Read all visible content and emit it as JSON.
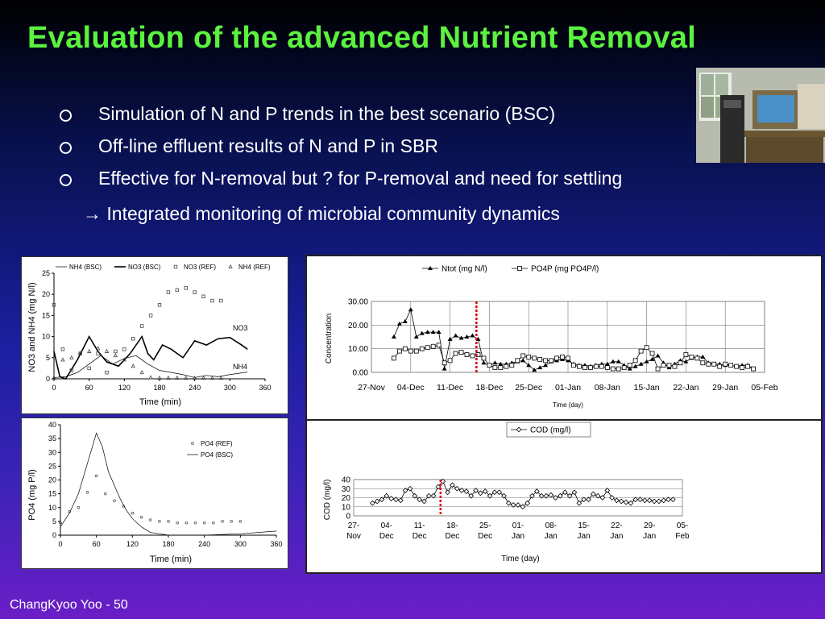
{
  "slide": {
    "title": "Evaluation of the advanced Nutrient Removal",
    "bullets": [
      "Simulation of N and P trends in the best scenario (BSC)",
      "Off-line effluent results of N and P in SBR",
      "Effective for N-removal but ? for P-removal and need for settling"
    ],
    "sub_arrow": "→",
    "sub_text": "Integrated monitoring of microbial community dynamics",
    "footer": "ChangKyoo Yoo - 50",
    "colors": {
      "title": "#5bf23f",
      "text": "#ffffff",
      "marker_line": "#dd0000"
    },
    "photo_icon": "lab-equipment-photo"
  },
  "chart_data": [
    {
      "id": "n_sim",
      "type": "line",
      "xlabel": "Time (min)",
      "ylabel": "NO3 and NH4 (mg N/l)",
      "xticks": [
        0,
        60,
        120,
        180,
        240,
        300,
        360
      ],
      "yticks": [
        0,
        5,
        10,
        15,
        20,
        25
      ],
      "xlim": [
        0,
        360
      ],
      "ylim": [
        0,
        25
      ],
      "legend": [
        "NH4 (BSC)",
        "NO3 (BSC)",
        "NO3 (REF)",
        "NH4 (REF)"
      ],
      "annotations": [
        "NO3",
        "NH4"
      ],
      "series": [
        {
          "name": "NH4 (BSC)",
          "style": "thin-line",
          "x": [
            0,
            20,
            40,
            60,
            80,
            100,
            120,
            140,
            160,
            180,
            200,
            220,
            240,
            260,
            280,
            300,
            330
          ],
          "y": [
            0.3,
            0.5,
            1.5,
            3.5,
            5.5,
            3.5,
            4.8,
            5.5,
            3.5,
            2.0,
            1.5,
            1.0,
            0.3,
            0.8,
            0.5,
            1.0,
            1.6
          ]
        },
        {
          "name": "NO3 (BSC)",
          "style": "thick-line",
          "x": [
            0,
            10,
            20,
            40,
            60,
            75,
            90,
            110,
            130,
            150,
            160,
            170,
            185,
            200,
            220,
            240,
            260,
            280,
            300,
            320,
            330
          ],
          "y": [
            6.5,
            0.5,
            0,
            4.5,
            10,
            6.5,
            4,
            3,
            6,
            10,
            6,
            4.5,
            8,
            7,
            5,
            9,
            8,
            9.5,
            9.8,
            8,
            7
          ]
        },
        {
          "name": "NO3 (REF)",
          "style": "square-markers",
          "x": [
            0,
            15,
            30,
            45,
            60,
            75,
            90,
            105,
            120,
            135,
            150,
            165,
            180,
            195,
            210,
            225,
            240,
            255,
            270,
            285
          ],
          "y": [
            17.5,
            7,
            2,
            6,
            2.5,
            6,
            1.5,
            6.5,
            7,
            9.5,
            12.5,
            15,
            17.5,
            20.5,
            21,
            21.5,
            20.5,
            19.5,
            18.5,
            18.5
          ]
        },
        {
          "name": "NH4 (REF)",
          "style": "triangle-markers",
          "x": [
            0,
            15,
            30,
            45,
            60,
            75,
            90,
            105,
            120,
            135,
            150,
            165,
            180,
            195,
            210,
            225,
            240,
            255,
            270,
            285
          ],
          "y": [
            0.2,
            4.5,
            5,
            6,
            6.5,
            7.2,
            6.5,
            5.5,
            4.5,
            3,
            1.5,
            0.3,
            0.2,
            0.2,
            0.2,
            0.2,
            0.2,
            0.2,
            0.2,
            0.2
          ]
        }
      ]
    },
    {
      "id": "p_sim",
      "type": "line",
      "xlabel": "Time (min)",
      "ylabel": "PO4 (mg P/l)",
      "xticks": [
        0,
        60,
        120,
        180,
        240,
        300,
        360
      ],
      "yticks": [
        0,
        5,
        10,
        15,
        20,
        25,
        30,
        35,
        40
      ],
      "xlim": [
        0,
        360
      ],
      "ylim": [
        0,
        40
      ],
      "legend": [
        "PO4 (REF)",
        "PO4 (BSC)"
      ],
      "series": [
        {
          "name": "PO4 (REF)",
          "style": "diamond-markers",
          "x": [
            0,
            15,
            30,
            45,
            60,
            75,
            90,
            105,
            120,
            135,
            150,
            165,
            180,
            195,
            210,
            225,
            240,
            255,
            270,
            285,
            300
          ],
          "y": [
            4.5,
            8.5,
            10,
            15.5,
            21.5,
            15,
            12.5,
            10.5,
            8,
            6.5,
            5.5,
            5,
            5,
            4.5,
            4.5,
            4.5,
            4.5,
            4.5,
            5,
            5,
            5
          ]
        },
        {
          "name": "PO4 (BSC)",
          "style": "thin-line",
          "x": [
            0,
            15,
            30,
            45,
            60,
            70,
            80,
            90,
            100,
            110,
            120,
            135,
            150,
            165,
            180,
            200,
            240,
            300,
            360
          ],
          "y": [
            3,
            8,
            15,
            26,
            37,
            32,
            23,
            18,
            13,
            9,
            6,
            3,
            1,
            0.5,
            0,
            0,
            0,
            0.5,
            1.5
          ]
        }
      ]
    },
    {
      "id": "ntot_po4p",
      "type": "line",
      "ylabel": "Concentration",
      "xlabel": "Time (day)",
      "xtick_labels": [
        "27-Nov",
        "04-Dec",
        "11-Dec",
        "18-Dec",
        "25-Dec",
        "01-Jan",
        "08-Jan",
        "15-Jan",
        "22-Jan",
        "29-Jan",
        "05-Feb"
      ],
      "ytick_labels": [
        "0.00",
        "10.00",
        "20.00",
        "30.00"
      ],
      "yticks": [
        0,
        10,
        20,
        30
      ],
      "ylim": [
        0,
        30
      ],
      "xlim": [
        0,
        70
      ],
      "legend": [
        "Ntot (mg N/l)",
        "PO4P (mg PO4P/l)"
      ],
      "marker_day": 18.7,
      "series": [
        {
          "name": "Ntot (mg N/l)",
          "style": "filled-triangle",
          "x": [
            4,
            5,
            6,
            7,
            8,
            9,
            10,
            11,
            12,
            13,
            14,
            15,
            16,
            17,
            18,
            19,
            20,
            21,
            22,
            23,
            24,
            25,
            26,
            27,
            28,
            29,
            30,
            31,
            32,
            33,
            34,
            35,
            36,
            37,
            38,
            39,
            40,
            41,
            42,
            43,
            44,
            45,
            46,
            47,
            48,
            49,
            50,
            51,
            52,
            53,
            54,
            55,
            56,
            57,
            58,
            59,
            60,
            61,
            62,
            63,
            64,
            65,
            66,
            67,
            68
          ],
          "y": [
            15,
            20.5,
            21.5,
            26.5,
            15,
            16.5,
            17,
            17,
            17,
            1.5,
            14,
            15.5,
            14.5,
            15,
            15.5,
            14,
            4,
            3,
            4,
            3.5,
            3.5,
            4,
            4.5,
            5,
            3,
            1,
            2,
            3,
            4.5,
            5,
            5.5,
            5,
            3.5,
            3,
            3,
            2.5,
            3,
            3.5,
            3.5,
            4.5,
            4.5,
            3,
            1.5,
            2.5,
            3.5,
            4.5,
            5.5,
            7,
            4,
            2,
            3.5,
            5,
            4.5,
            6,
            6.5,
            6.5,
            4,
            3.5,
            3.5,
            3,
            3,
            2.5,
            3,
            3,
            1.5
          ]
        },
        {
          "name": "PO4P (mg PO4P/l)",
          "style": "open-square",
          "x": [
            4,
            5,
            6,
            7,
            8,
            9,
            10,
            11,
            12,
            13,
            14,
            15,
            16,
            17,
            18,
            19,
            20,
            21,
            22,
            23,
            24,
            25,
            26,
            27,
            28,
            29,
            30,
            31,
            32,
            33,
            34,
            35,
            36,
            37,
            38,
            39,
            40,
            41,
            42,
            43,
            44,
            45,
            46,
            47,
            48,
            49,
            50,
            51,
            52,
            53,
            54,
            55,
            56,
            57,
            58,
            59,
            60,
            61,
            62,
            63,
            64,
            65,
            66,
            67,
            68
          ],
          "y": [
            6,
            9,
            10,
            9,
            9,
            10,
            10.5,
            11,
            11.5,
            4,
            5,
            8,
            8.5,
            7.5,
            7,
            7.5,
            6,
            3,
            2,
            2,
            2.5,
            3,
            5,
            7,
            6.5,
            6,
            5.5,
            5,
            5,
            6,
            6.5,
            6,
            3,
            2.5,
            2,
            2,
            2.5,
            2.5,
            2,
            1.5,
            1.5,
            2,
            3,
            5,
            9,
            10.5,
            8,
            1.5,
            3,
            3,
            2.5,
            4,
            7.5,
            6.5,
            6,
            4,
            3.5,
            3.5,
            2.5,
            3.5,
            3,
            2.5,
            2,
            2.5,
            1.5
          ]
        }
      ]
    },
    {
      "id": "cod",
      "type": "line",
      "ylabel": "COD (mg/l)",
      "xlabel": "Time (day)",
      "xtick_labels": [
        [
          "27-",
          "Nov"
        ],
        [
          "04-",
          "Dec"
        ],
        [
          "11-",
          "Dec"
        ],
        [
          "18-",
          "Dec"
        ],
        [
          "25-",
          "Dec"
        ],
        [
          "01-",
          "Jan"
        ],
        [
          "08-",
          "Jan"
        ],
        [
          "15-",
          "Jan"
        ],
        [
          "22-",
          "Jan"
        ],
        [
          "29-",
          "Jan"
        ],
        [
          "05-",
          "Feb"
        ]
      ],
      "yticks": [
        0,
        10,
        20,
        30,
        40
      ],
      "ylim": [
        0,
        40
      ],
      "xlim": [
        0,
        70
      ],
      "legend": [
        "COD (mg/l)"
      ],
      "marker_day": 18.5,
      "series": [
        {
          "name": "COD (mg/l)",
          "style": "open-diamond",
          "x": [
            4,
            5,
            6,
            7,
            8,
            9,
            10,
            11,
            12,
            13,
            14,
            15,
            16,
            17,
            18,
            19,
            20,
            21,
            22,
            23,
            24,
            25,
            26,
            27,
            28,
            29,
            30,
            31,
            32,
            33,
            34,
            35,
            36,
            37,
            38,
            39,
            40,
            41,
            42,
            43,
            44,
            45,
            46,
            47,
            48,
            49,
            50,
            51,
            52,
            53,
            54,
            55,
            56,
            57,
            58,
            59,
            60,
            61,
            62,
            63,
            64,
            65,
            66,
            67,
            68
          ],
          "y": [
            14,
            16,
            18,
            22,
            19,
            18,
            17,
            28,
            30,
            22,
            18,
            16,
            22,
            22,
            32,
            38,
            26,
            34,
            30,
            28,
            27,
            22,
            28,
            25,
            27,
            22,
            26,
            26,
            22,
            14,
            12,
            12,
            10,
            14,
            22,
            27,
            22,
            22,
            23,
            20,
            22,
            26,
            22,
            26,
            14,
            18,
            18,
            24,
            22,
            20,
            28,
            20,
            17,
            16,
            15,
            14,
            18,
            18,
            17,
            17,
            16,
            16,
            17,
            18,
            18
          ]
        }
      ]
    }
  ]
}
